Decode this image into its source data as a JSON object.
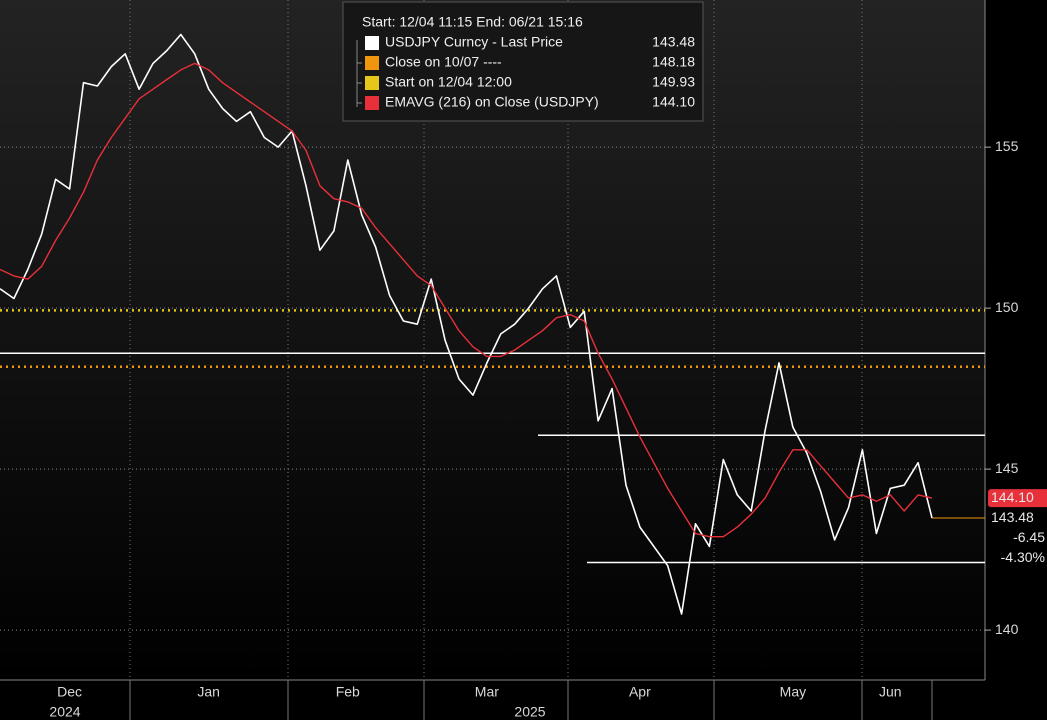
{
  "chart_data": {
    "type": "line",
    "legend_header": "Start: 12/04 11:15  End: 06/21 15:16",
    "categories": [
      null,
      null,
      null,
      null,
      null,
      "Dec",
      null,
      null,
      null,
      null,
      null,
      null,
      null,
      null,
      null,
      "Jan",
      null,
      null,
      null,
      null,
      null,
      null,
      null,
      null,
      null,
      "Feb",
      null,
      null,
      null,
      null,
      null,
      null,
      null,
      null,
      null,
      "Mar",
      null,
      null,
      null,
      null,
      null,
      null,
      null,
      null,
      null,
      null,
      "Apr",
      null,
      null,
      null,
      null,
      null,
      null,
      null,
      null,
      null,
      null,
      "May",
      null,
      null,
      null,
      null,
      null,
      null,
      "Jun",
      null,
      null,
      null
    ],
    "years": [
      "2024",
      "2025"
    ],
    "series": [
      {
        "name": "USDJPY Curncy - Last Price",
        "color": "#ffffff",
        "values": [
          150.6,
          150.3,
          151.2,
          152.3,
          154.0,
          153.7,
          157.0,
          156.9,
          157.5,
          157.9,
          156.8,
          157.6,
          158.0,
          158.5,
          157.9,
          156.8,
          156.2,
          155.8,
          156.1,
          155.3,
          155.0,
          155.5,
          153.8,
          151.8,
          152.4,
          154.6,
          152.9,
          151.9,
          150.4,
          149.6,
          149.5,
          150.9,
          149.0,
          147.8,
          147.3,
          148.3,
          149.2,
          149.5,
          150.0,
          150.6,
          151.0,
          149.4,
          149.9,
          146.5,
          147.5,
          144.5,
          143.2,
          142.6,
          142.0,
          140.5,
          143.3,
          142.6,
          145.3,
          144.2,
          143.7,
          146.2,
          148.3,
          146.3,
          145.5,
          144.3,
          142.8,
          143.8,
          145.6,
          143.0,
          144.4,
          144.5,
          145.2,
          143.48
        ]
      },
      {
        "name": "EMAVG (216)  on Close (USDJPY)",
        "color": "#e8303a",
        "last_label": "144.10",
        "values": [
          151.2,
          151.0,
          150.9,
          151.3,
          152.1,
          152.8,
          153.6,
          154.6,
          155.3,
          155.9,
          156.5,
          156.8,
          157.1,
          157.4,
          157.6,
          157.4,
          157.0,
          156.7,
          156.4,
          156.1,
          155.8,
          155.5,
          154.9,
          153.8,
          153.4,
          153.3,
          153.1,
          152.5,
          152.0,
          151.5,
          151.0,
          150.7,
          150.0,
          149.3,
          148.8,
          148.5,
          148.5,
          148.7,
          149.0,
          149.3,
          149.7,
          149.8,
          149.6,
          148.6,
          147.8,
          146.9,
          146.0,
          145.2,
          144.4,
          143.7,
          143.0,
          142.9,
          142.9,
          143.2,
          143.6,
          144.1,
          144.9,
          145.6,
          145.6,
          145.1,
          144.6,
          144.1,
          144.2,
          144.0,
          144.2,
          143.7,
          144.2,
          144.1
        ]
      }
    ],
    "reference_lines": [
      {
        "name": "Close on 10/07 ----",
        "color": "#f0960e",
        "value": 148.18
      },
      {
        "name": "Start on 12/04 12:00",
        "color": "#e6c619",
        "value": 149.93
      }
    ],
    "trend_lines": [
      148.6,
      146.05,
      142.1
    ],
    "change": -6.45,
    "change_pct": -4.3,
    "change_pct_label": "-4.30%",
    "ylim": [
      138.45,
      159.57
    ],
    "yticks": [
      140,
      145,
      150,
      155
    ],
    "grid": true
  }
}
